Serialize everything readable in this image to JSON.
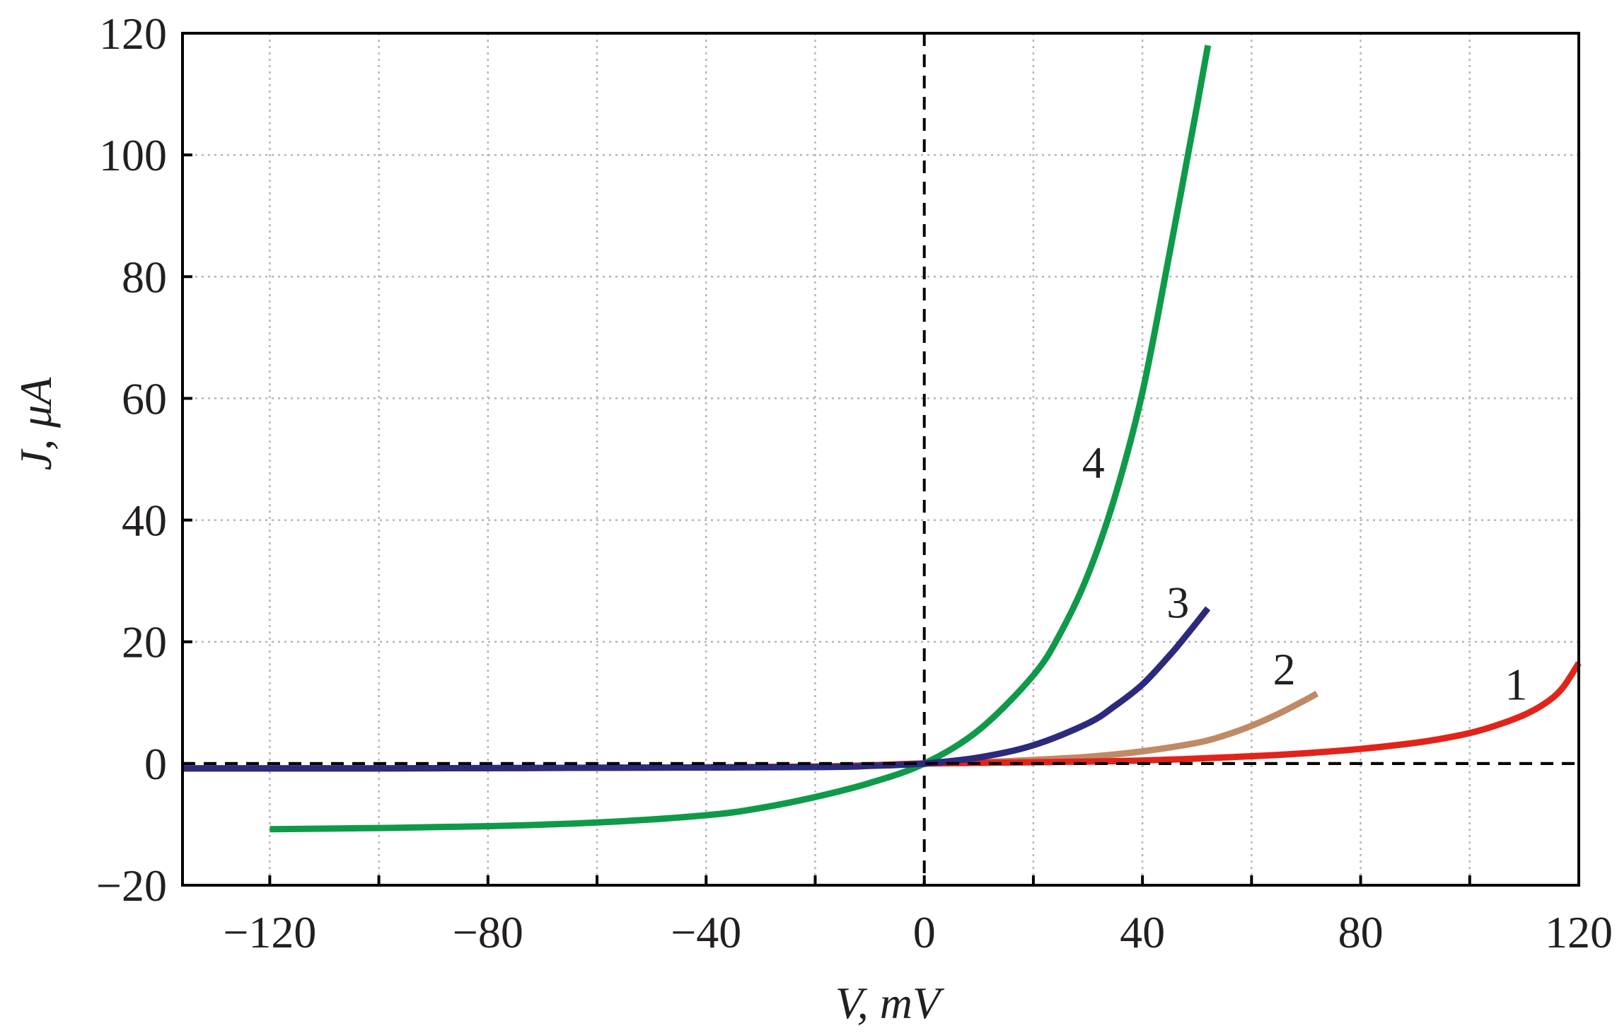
{
  "chart_data": {
    "type": "line",
    "xlabel": "V, mV",
    "ylabel": "J, μA",
    "xlim": [
      -136,
      120
    ],
    "ylim": [
      -20,
      120
    ],
    "x_ticks": [
      -120,
      -80,
      -40,
      0,
      40,
      80,
      120
    ],
    "x_tick_labels": [
      "−120",
      "−80",
      "−40",
      "0",
      "40",
      "80",
      "120"
    ],
    "x_minor_ticks": [
      -100,
      -60,
      -20,
      20,
      60,
      100
    ],
    "y_ticks": [
      -20,
      0,
      20,
      40,
      60,
      80,
      100,
      120
    ],
    "y_tick_labels": [
      "−20",
      "0",
      "20",
      "40",
      "60",
      "80",
      "100",
      "120"
    ],
    "grid": true,
    "zero_lines": true,
    "series": [
      {
        "name": "1",
        "color": "#e2231a",
        "x": [
          -136,
          -100,
          -60,
          -20,
          0,
          20,
          40,
          60,
          70,
          80,
          90,
          95,
          100,
          105,
          110,
          114,
          117,
          120
        ],
        "y": [
          -0.8,
          -0.8,
          -0.7,
          -0.5,
          0,
          0.2,
          0.5,
          1.2,
          1.7,
          2.4,
          3.4,
          4.1,
          5.0,
          6.3,
          8.0,
          10.0,
          12.4,
          16.5
        ],
        "label": {
          "text": "1",
          "x": 108.5,
          "y": 10.5
        }
      },
      {
        "name": "2",
        "color": "#c08a66",
        "x": [
          -136,
          -100,
          -60,
          -20,
          0,
          10,
          20,
          30,
          40,
          50,
          55,
          60,
          65,
          70,
          72
        ],
        "y": [
          -0.8,
          -0.8,
          -0.7,
          -0.5,
          0,
          0.2,
          0.6,
          1.1,
          2.0,
          3.4,
          4.6,
          6.2,
          8.2,
          10.5,
          11.5
        ],
        "label": {
          "text": "2",
          "x": 66,
          "y": 13
        }
      },
      {
        "name": "3",
        "color": "#2b2a7d",
        "x": [
          -136,
          -100,
          -60,
          -20,
          -10,
          0,
          10,
          20,
          30,
          35,
          40,
          45,
          48,
          52
        ],
        "y": [
          -0.8,
          -0.8,
          -0.7,
          -0.6,
          -0.4,
          0,
          1.0,
          3.0,
          6.6,
          9.5,
          13.0,
          17.8,
          21.0,
          25.5
        ],
        "label": {
          "text": "3",
          "x": 46.5,
          "y": 24
        }
      },
      {
        "name": "4",
        "color": "#0f9a4a",
        "x": [
          -120,
          -100,
          -80,
          -60,
          -40,
          -30,
          -20,
          -10,
          0,
          10,
          20,
          25,
          30,
          35,
          40,
          45,
          50,
          52
        ],
        "y": [
          -10.8,
          -10.6,
          -10.3,
          -9.7,
          -8.5,
          -7.3,
          -5.5,
          -3.2,
          0,
          5.5,
          14.5,
          21.5,
          31.0,
          44.0,
          61.0,
          84.0,
          108.0,
          118.0
        ],
        "label": {
          "text": "4",
          "x": 31,
          "y": 47
        }
      }
    ]
  }
}
